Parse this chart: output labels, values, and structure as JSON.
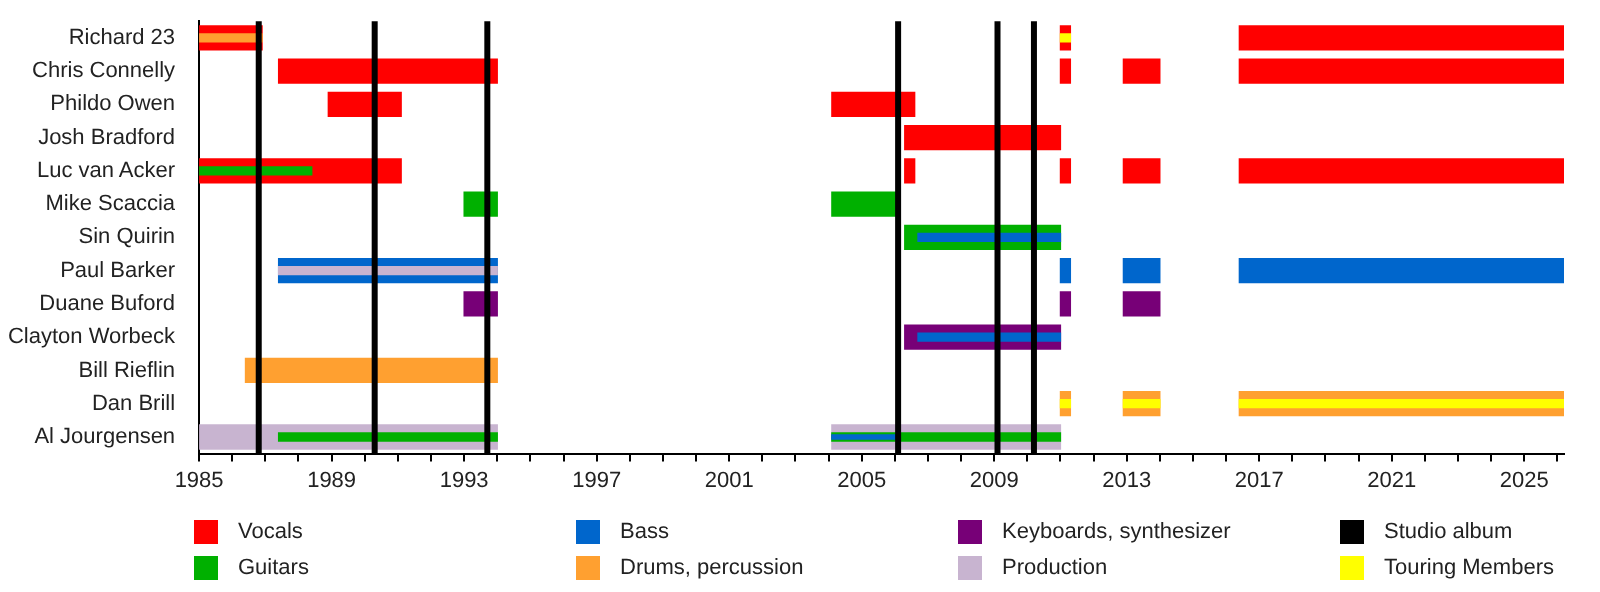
{
  "chart_data": {
    "type": "bar",
    "orientation": "horizontal",
    "legend": "bottom",
    "grid": false,
    "categories": [
      "Richard 23",
      "Chris Connelly",
      "Phildo Owen",
      "Josh Bradford",
      "Luc van Acker",
      "Mike Scaccia",
      "Sin Quirin",
      "Paul Barker",
      "Duane Buford",
      "Clayton Worbeck",
      "Bill Rieflin",
      "Dan Brill",
      "Al Jourgensen"
    ],
    "xlim": [
      1985,
      2026.2
    ],
    "xticks": [
      1985,
      {
        "value": 1986,
        "label": null
      },
      {
        "value": 1987,
        "label": null
      },
      {
        "value": 1988,
        "label": null
      },
      1989,
      {
        "value": 1990,
        "label": null
      },
      {
        "value": 1991,
        "label": null
      },
      {
        "value": 1992,
        "label": null
      },
      1993,
      {
        "value": 1994,
        "label": null
      },
      {
        "value": 1995,
        "label": null
      },
      {
        "value": 1996,
        "label": null
      },
      1997,
      {
        "value": 1998,
        "label": null
      },
      {
        "value": 1999,
        "label": null
      },
      {
        "value": 2000,
        "label": null
      },
      2001,
      {
        "value": 2002,
        "label": null
      },
      {
        "value": 2003,
        "label": null
      },
      {
        "value": 2004,
        "label": null
      },
      2005,
      {
        "value": 2006,
        "label": null
      },
      {
        "value": 2007,
        "label": null
      },
      {
        "value": 2008,
        "label": null
      },
      2009,
      {
        "value": 2010,
        "label": null
      },
      {
        "value": 2011,
        "label": null
      },
      {
        "value": 2012,
        "label": null
      },
      2013,
      {
        "value": 2014,
        "label": null
      },
      {
        "value": 2015,
        "label": null
      },
      {
        "value": 2016,
        "label": null
      },
      2017,
      {
        "value": 2018,
        "label": null
      },
      {
        "value": 2019,
        "label": null
      },
      {
        "value": 2020,
        "label": null
      },
      2021,
      {
        "value": 2022,
        "label": null
      },
      {
        "value": 2023,
        "label": null
      },
      {
        "value": 2024,
        "label": null
      },
      2025,
      {
        "value": 2026,
        "label": null
      }
    ],
    "series": [
      {
        "name": "Vocals",
        "color": "#ff0000",
        "values": [
          1.9,
          6.6,
          2.2,
          4.7,
          6.1,
          null,
          null,
          null,
          null,
          null,
          null,
          null,
          null
        ],
        "base": [
          1985,
          1987.4,
          1988.9,
          2006.3,
          1985,
          null,
          null,
          null,
          null,
          null,
          null,
          null,
          null
        ]
      },
      {
        "color": "#ff0000",
        "values": [
          0.3,
          0.3,
          2.5,
          null,
          0.3,
          null,
          null,
          null,
          null,
          null,
          null,
          null,
          null
        ],
        "base": [
          2011,
          2011,
          2004.1,
          null,
          2006.3,
          null,
          null,
          null,
          null,
          null,
          null,
          null,
          null
        ]
      },
      {
        "color": "#ff0000",
        "values": [
          9.8,
          1.1,
          null,
          null,
          0.3,
          null,
          null,
          null,
          null,
          null,
          null,
          null,
          null
        ],
        "base": [
          2016.4,
          2012.9,
          null,
          null,
          2011,
          null,
          null,
          null,
          null,
          null,
          null,
          null,
          null
        ]
      },
      {
        "color": "#ff0000",
        "values": [
          null,
          9.8,
          null,
          null,
          1.1,
          null,
          null,
          null,
          null,
          null,
          null,
          null,
          null
        ],
        "base": [
          null,
          2016.4,
          null,
          null,
          2012.9,
          null,
          null,
          null,
          null,
          null,
          null,
          null,
          null
        ]
      },
      {
        "color": "#ff0000",
        "values": [
          null,
          null,
          null,
          null,
          9.8,
          null,
          null,
          null,
          null,
          null,
          null,
          null,
          null
        ],
        "base": [
          null,
          null,
          null,
          null,
          2016.4,
          null,
          null,
          null,
          null,
          null,
          null,
          null,
          null
        ]
      },
      {
        "name": "Guitars",
        "color": "#00b000",
        "values": [
          null,
          null,
          null,
          null,
          null,
          1,
          4.7,
          null,
          null,
          null,
          null,
          null,
          null
        ],
        "base": [
          null,
          null,
          null,
          null,
          null,
          1993,
          2006.3,
          null,
          null,
          null,
          null,
          null,
          null
        ]
      },
      {
        "color": "#00b000",
        "values": [
          null,
          null,
          null,
          null,
          null,
          2,
          null,
          null,
          null,
          null,
          null,
          null,
          null
        ],
        "base": [
          null,
          null,
          null,
          null,
          null,
          2004.1,
          null,
          null,
          null,
          null,
          null,
          null,
          null
        ]
      },
      {
        "name": "Bass",
        "color": "#0066cc",
        "values": [
          null,
          null,
          null,
          null,
          null,
          null,
          null,
          6.6,
          null,
          null,
          null,
          null,
          null
        ],
        "base": [
          null,
          null,
          null,
          null,
          null,
          null,
          null,
          1987.4,
          null,
          null,
          null,
          null,
          null
        ]
      },
      {
        "color": "#0066cc",
        "values": [
          null,
          null,
          null,
          null,
          null,
          null,
          null,
          0.3,
          null,
          null,
          null,
          null,
          null
        ],
        "base": [
          null,
          null,
          null,
          null,
          null,
          null,
          null,
          2011,
          null,
          null,
          null,
          null,
          null
        ]
      },
      {
        "color": "#0066cc",
        "values": [
          null,
          null,
          null,
          null,
          null,
          null,
          null,
          1.1,
          null,
          null,
          null,
          null,
          null
        ],
        "base": [
          null,
          null,
          null,
          null,
          null,
          null,
          null,
          2012.9,
          null,
          null,
          null,
          null,
          null
        ]
      },
      {
        "color": "#0066cc",
        "values": [
          null,
          null,
          null,
          null,
          null,
          null,
          null,
          9.8,
          null,
          null,
          null,
          null,
          null
        ],
        "base": [
          null,
          null,
          null,
          null,
          null,
          null,
          null,
          2016.4,
          null,
          null,
          null,
          null,
          null
        ]
      },
      {
        "name": "Drums, percussion",
        "color": "#ffa030",
        "values": [
          null,
          null,
          null,
          null,
          null,
          null,
          null,
          null,
          null,
          null,
          7.6,
          0.3,
          null
        ],
        "base": [
          null,
          null,
          null,
          null,
          null,
          null,
          null,
          null,
          null,
          null,
          1986.4,
          2011,
          null
        ]
      },
      {
        "color": "#ffa030",
        "values": [
          null,
          null,
          null,
          null,
          null,
          null,
          null,
          null,
          null,
          null,
          null,
          1.1,
          null
        ],
        "base": [
          null,
          null,
          null,
          null,
          null,
          null,
          null,
          null,
          null,
          null,
          null,
          2012.9,
          null
        ]
      },
      {
        "color": "#ffa030",
        "values": [
          null,
          null,
          null,
          null,
          null,
          null,
          null,
          null,
          null,
          null,
          null,
          9.8,
          null
        ],
        "base": [
          null,
          null,
          null,
          null,
          null,
          null,
          null,
          null,
          null,
          null,
          null,
          2016.4,
          null
        ]
      },
      {
        "name": "Keyboards, synthesizer",
        "color": "#770077",
        "values": [
          null,
          null,
          null,
          null,
          null,
          null,
          null,
          null,
          1,
          4.7,
          null,
          null,
          null
        ],
        "base": [
          null,
          null,
          null,
          null,
          null,
          null,
          null,
          null,
          1993,
          2006.3,
          null,
          null,
          null
        ]
      },
      {
        "color": "#770077",
        "values": [
          null,
          null,
          null,
          null,
          null,
          null,
          null,
          null,
          0.3,
          null,
          null,
          null,
          null
        ],
        "base": [
          null,
          null,
          null,
          null,
          null,
          null,
          null,
          null,
          2011,
          null,
          null,
          null,
          null
        ]
      },
      {
        "color": "#770077",
        "values": [
          null,
          null,
          null,
          null,
          null,
          null,
          null,
          null,
          1.1,
          null,
          null,
          null,
          null
        ],
        "base": [
          null,
          null,
          null,
          null,
          null,
          null,
          null,
          null,
          2012.9,
          null,
          null,
          null,
          null
        ]
      },
      {
        "name": "Production",
        "color": "#c8b4d0",
        "values": [
          null,
          null,
          null,
          null,
          null,
          null,
          null,
          null,
          null,
          null,
          null,
          null,
          9
        ],
        "base": [
          null,
          null,
          null,
          null,
          null,
          null,
          null,
          null,
          null,
          null,
          null,
          null,
          1985
        ]
      },
      {
        "color": "#c8b4d0",
        "values": [
          null,
          null,
          null,
          null,
          null,
          null,
          null,
          null,
          null,
          null,
          null,
          null,
          6.9
        ],
        "base": [
          null,
          null,
          null,
          null,
          null,
          null,
          null,
          null,
          null,
          null,
          null,
          null,
          2004.1
        ]
      },
      {
        "color": "#00b000",
        "values": [
          null,
          null,
          null,
          null,
          3.4,
          null,
          null,
          null,
          null,
          null,
          null,
          null,
          6.6
        ],
        "base": [
          null,
          null,
          null,
          null,
          1985,
          null,
          null,
          null,
          null,
          null,
          null,
          null,
          1987.4
        ]
      },
      {
        "color": "#00b000",
        "values": [
          null,
          null,
          null,
          null,
          null,
          null,
          null,
          null,
          null,
          null,
          null,
          null,
          6.9
        ],
        "base": [
          null,
          null,
          null,
          null,
          null,
          null,
          null,
          null,
          null,
          null,
          null,
          null,
          2004.1
        ]
      },
      {
        "color": "#0066cc",
        "values": [
          null,
          null,
          null,
          null,
          null,
          null,
          4.3,
          null,
          null,
          4.3,
          null,
          null,
          null
        ],
        "base": [
          null,
          null,
          null,
          null,
          null,
          null,
          2006.7,
          null,
          null,
          2006.7,
          null,
          null,
          null
        ]
      },
      {
        "color": "#0066cc",
        "values": [
          null,
          null,
          null,
          null,
          null,
          null,
          null,
          null,
          null,
          null,
          null,
          null,
          2
        ],
        "base": [
          null,
          null,
          null,
          null,
          null,
          null,
          null,
          null,
          null,
          null,
          null,
          null,
          2004.1
        ]
      },
      {
        "color": "#ffa030",
        "values": [
          1.9,
          null,
          null,
          null,
          null,
          null,
          null,
          null,
          null,
          null,
          null,
          null,
          null
        ],
        "base": [
          1985,
          null,
          null,
          null,
          null,
          null,
          null,
          null,
          null,
          null,
          null,
          null,
          null
        ]
      },
      {
        "color": "#c8b4d0",
        "values": [
          null,
          null,
          null,
          null,
          null,
          null,
          null,
          6.6,
          null,
          null,
          null,
          null,
          null
        ],
        "base": [
          null,
          null,
          null,
          null,
          null,
          null,
          null,
          1987.4,
          null,
          null,
          null,
          null,
          null
        ]
      },
      {
        "name": "Touring Members",
        "color": "#ffff00",
        "values": [
          0.3,
          null,
          null,
          null,
          null,
          null,
          null,
          null,
          null,
          null,
          null,
          0.3,
          null
        ],
        "base": [
          2011,
          null,
          null,
          null,
          null,
          null,
          null,
          null,
          null,
          null,
          null,
          2011,
          null
        ]
      },
      {
        "color": "#ffff00",
        "values": [
          null,
          null,
          null,
          null,
          null,
          null,
          null,
          null,
          null,
          null,
          null,
          1.1,
          null
        ],
        "base": [
          null,
          null,
          null,
          null,
          null,
          null,
          null,
          null,
          null,
          null,
          null,
          2012.9,
          null
        ]
      },
      {
        "color": "#ffff00",
        "values": [
          null,
          null,
          null,
          null,
          null,
          null,
          null,
          null,
          null,
          null,
          null,
          9.8,
          null
        ],
        "base": [
          null,
          null,
          null,
          null,
          null,
          null,
          null,
          null,
          null,
          null,
          null,
          2016.4,
          null
        ]
      }
    ],
    "ref_lines": [
      {
        "axis": "x",
        "value": 1986.8,
        "label": "Studio album",
        "color": "#000000"
      },
      {
        "axis": "x",
        "value": 1990.3,
        "color": "#000000"
      },
      {
        "axis": "x",
        "value": 1993.7,
        "color": "#000000"
      },
      {
        "axis": "x",
        "value": 2006.1,
        "color": "#000000"
      },
      {
        "axis": "x",
        "value": 2009.1,
        "color": "#000000"
      },
      {
        "axis": "x",
        "value": 2010.2,
        "color": "#000000"
      }
    ]
  }
}
